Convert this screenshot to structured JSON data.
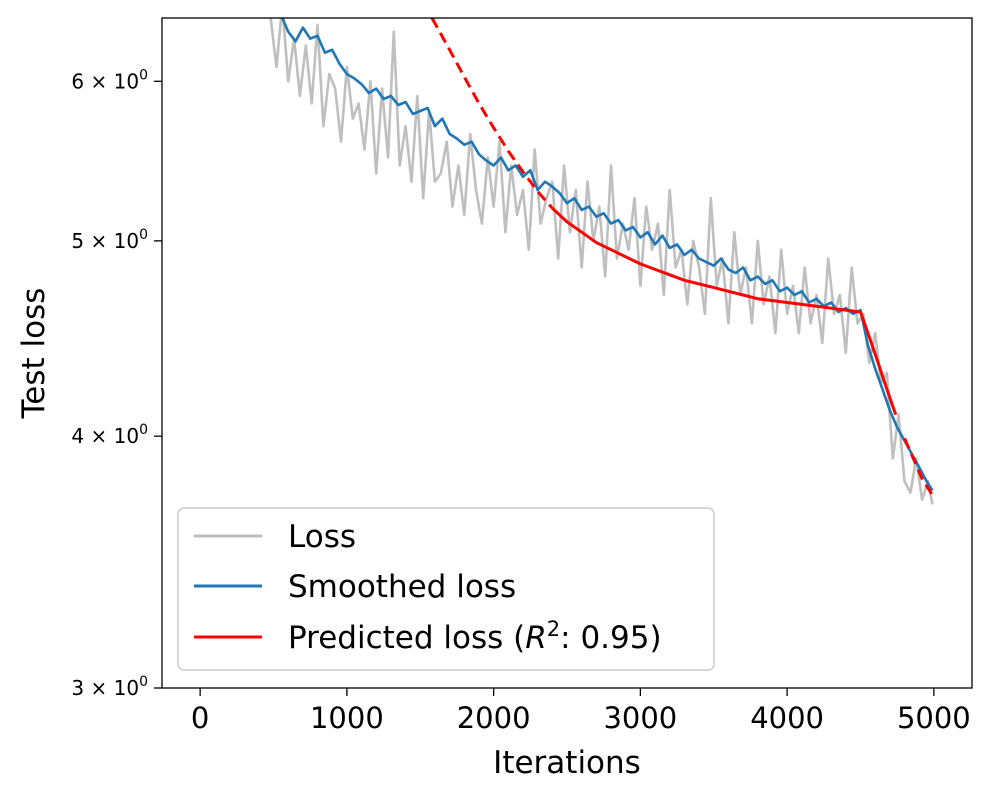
{
  "chart_data": {
    "type": "line",
    "title": "",
    "xlabel": "Iterations",
    "ylabel": "Test loss",
    "xlim": [
      -260,
      5260
    ],
    "ylim": [
      3.0,
      6.45
    ],
    "y_scale": "log",
    "grid": false,
    "x_ticks": [
      0,
      1000,
      2000,
      3000,
      4000,
      5000
    ],
    "x_tick_labels": [
      "0",
      "1000",
      "2000",
      "3000",
      "4000",
      "5000"
    ],
    "y_ticks": [
      {
        "value": 3,
        "mantissa": "3",
        "exponent": "0"
      },
      {
        "value": 4,
        "mantissa": "4",
        "exponent": "0"
      },
      {
        "value": 5,
        "mantissa": "5",
        "exponent": "0"
      },
      {
        "value": 6,
        "mantissa": "6",
        "exponent": "0"
      }
    ],
    "legend": {
      "position": "lower-left",
      "entries": [
        {
          "label": "Loss",
          "color": "#bfbfbf"
        },
        {
          "label": "Smoothed loss",
          "color": "#1f77b4"
        },
        {
          "label_prefix": "Predicted loss (",
          "label_var": "R",
          "label_sup": "2",
          "label_suffix": ": 0.95)",
          "color": "#ff0000"
        }
      ]
    },
    "series": [
      {
        "name": "Loss",
        "color": "#bfbfbf",
        "x": [
          480,
          520,
          560,
          600,
          640,
          680,
          720,
          760,
          800,
          840,
          880,
          920,
          960,
          1000,
          1040,
          1080,
          1120,
          1160,
          1200,
          1240,
          1280,
          1320,
          1360,
          1400,
          1440,
          1480,
          1520,
          1560,
          1600,
          1640,
          1680,
          1720,
          1760,
          1800,
          1840,
          1880,
          1920,
          1960,
          2000,
          2040,
          2080,
          2120,
          2160,
          2200,
          2240,
          2280,
          2320,
          2360,
          2400,
          2440,
          2480,
          2520,
          2560,
          2600,
          2640,
          2680,
          2720,
          2760,
          2800,
          2840,
          2880,
          2920,
          2960,
          3000,
          3040,
          3080,
          3120,
          3160,
          3200,
          3240,
          3280,
          3320,
          3360,
          3400,
          3440,
          3480,
          3520,
          3560,
          3600,
          3640,
          3680,
          3720,
          3760,
          3800,
          3840,
          3880,
          3920,
          3960,
          4000,
          4040,
          4080,
          4120,
          4160,
          4200,
          4240,
          4280,
          4320,
          4360,
          4400,
          4440,
          4480,
          4520,
          4560,
          4600,
          4640,
          4680,
          4720,
          4760,
          4800,
          4840,
          4880,
          4920,
          4960,
          4990
        ],
        "values": [
          6.45,
          6.1,
          6.55,
          6.0,
          6.3,
          5.9,
          6.25,
          5.85,
          6.4,
          5.7,
          6.05,
          5.95,
          5.6,
          6.1,
          5.75,
          5.85,
          5.55,
          6.0,
          5.4,
          5.95,
          5.5,
          6.35,
          5.45,
          5.7,
          5.35,
          5.9,
          5.25,
          5.8,
          5.35,
          5.4,
          5.6,
          5.2,
          5.45,
          5.15,
          5.65,
          5.3,
          5.1,
          5.5,
          5.2,
          5.6,
          5.05,
          5.45,
          5.15,
          5.3,
          4.95,
          5.55,
          5.1,
          5.25,
          5.35,
          4.9,
          5.45,
          5.05,
          5.3,
          4.85,
          5.35,
          5.0,
          5.2,
          4.8,
          5.45,
          4.9,
          5.1,
          4.95,
          5.25,
          4.75,
          5.2,
          4.95,
          5.1,
          4.7,
          5.3,
          4.85,
          4.95,
          4.65,
          5.0,
          4.85,
          4.6,
          5.25,
          4.75,
          4.9,
          4.55,
          5.05,
          4.7,
          4.85,
          4.55,
          5.0,
          4.65,
          4.8,
          4.5,
          4.95,
          4.6,
          4.75,
          4.5,
          4.85,
          4.55,
          4.7,
          4.45,
          4.9,
          4.6,
          4.7,
          4.4,
          4.85,
          4.55,
          4.6,
          4.35,
          4.5,
          4.25,
          4.3,
          3.9,
          4.1,
          3.8,
          3.75,
          3.9,
          3.72,
          3.8,
          3.7
        ]
      },
      {
        "name": "Smoothed loss",
        "color": "#1f77b4",
        "x": [
          560,
          600,
          650,
          700,
          750,
          800,
          850,
          900,
          950,
          1000,
          1050,
          1100,
          1150,
          1200,
          1250,
          1300,
          1350,
          1400,
          1450,
          1500,
          1550,
          1600,
          1650,
          1700,
          1750,
          1800,
          1850,
          1900,
          1950,
          2000,
          2050,
          2100,
          2150,
          2200,
          2250,
          2300,
          2350,
          2400,
          2450,
          2500,
          2550,
          2600,
          2650,
          2700,
          2750,
          2800,
          2850,
          2900,
          2950,
          3000,
          3050,
          3100,
          3150,
          3200,
          3250,
          3300,
          3350,
          3400,
          3450,
          3500,
          3550,
          3600,
          3650,
          3700,
          3750,
          3800,
          3850,
          3900,
          3950,
          4000,
          4050,
          4100,
          4150,
          4200,
          4250,
          4300,
          4350,
          4400,
          4450,
          4500,
          4550,
          4600,
          4650,
          4700,
          4750,
          4800,
          4850,
          4900,
          4950,
          4990
        ],
        "values": [
          6.45,
          6.35,
          6.28,
          6.38,
          6.3,
          6.32,
          6.2,
          6.22,
          6.12,
          6.05,
          6.02,
          5.98,
          5.92,
          5.95,
          5.88,
          5.9,
          5.84,
          5.86,
          5.78,
          5.8,
          5.82,
          5.7,
          5.75,
          5.65,
          5.62,
          5.58,
          5.6,
          5.52,
          5.48,
          5.45,
          5.5,
          5.42,
          5.45,
          5.38,
          5.42,
          5.3,
          5.35,
          5.32,
          5.28,
          5.22,
          5.25,
          5.18,
          5.2,
          5.14,
          5.16,
          5.1,
          5.12,
          5.06,
          5.08,
          5.02,
          5.05,
          4.98,
          5.03,
          4.96,
          4.98,
          4.92,
          4.95,
          4.9,
          4.88,
          4.86,
          4.9,
          4.84,
          4.82,
          4.85,
          4.78,
          4.8,
          4.76,
          4.78,
          4.72,
          4.74,
          4.7,
          4.72,
          4.66,
          4.68,
          4.64,
          4.66,
          4.61,
          4.63,
          4.6,
          4.62,
          4.44,
          4.32,
          4.22,
          4.12,
          4.04,
          3.98,
          3.92,
          3.86,
          3.8,
          3.76
        ]
      },
      {
        "name": "Predicted loss (R²: 0.95)",
        "color": "#ff0000",
        "x": [
          1580,
          1700,
          1800,
          1900,
          2000,
          2100,
          2200,
          2300,
          2400,
          2500,
          2600,
          2700,
          2800,
          2900,
          3000,
          3100,
          3200,
          3300,
          3400,
          3500,
          3600,
          3700,
          3800,
          3900,
          4000,
          4100,
          4200,
          4300,
          4400,
          4500,
          4560,
          4620,
          4680,
          4740,
          4800,
          4860,
          4920,
          4990
        ],
        "values": [
          6.45,
          6.22,
          6.03,
          5.85,
          5.69,
          5.54,
          5.41,
          5.29,
          5.19,
          5.11,
          5.05,
          4.99,
          4.95,
          4.91,
          4.87,
          4.84,
          4.81,
          4.78,
          4.76,
          4.74,
          4.72,
          4.7,
          4.68,
          4.67,
          4.66,
          4.65,
          4.64,
          4.63,
          4.62,
          4.61,
          4.48,
          4.35,
          4.22,
          4.1,
          3.99,
          3.9,
          3.81,
          3.74
        ],
        "solid_from": 2400,
        "dashed_after": 4750
      }
    ]
  }
}
